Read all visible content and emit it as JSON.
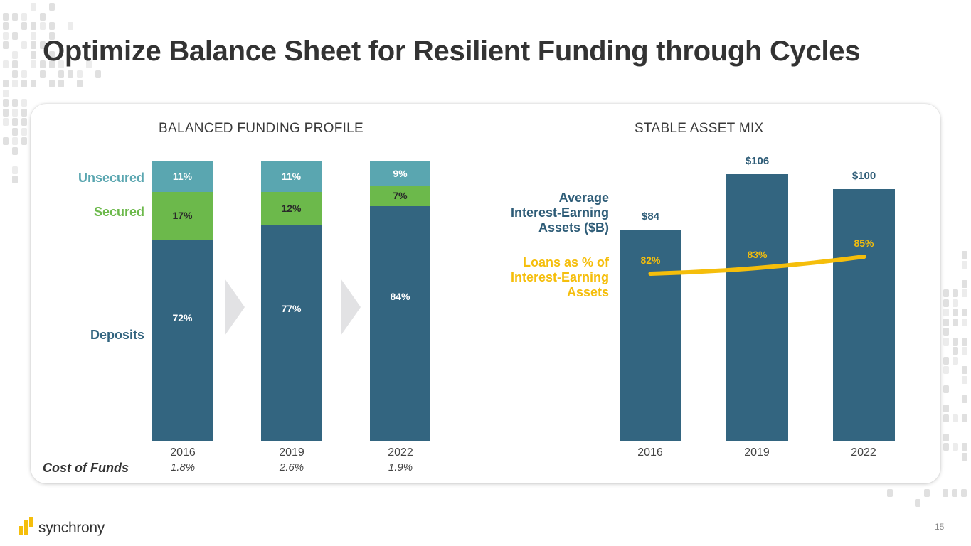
{
  "slide": {
    "title": "Optimize Balance Sheet for Resilient Funding through Cycles",
    "page_number": "15",
    "brand": "synchrony"
  },
  "colors": {
    "unsecured": "#5aa6b0",
    "secured": "#6cb94b",
    "deposits": "#336580",
    "loans_line": "#f5be0b",
    "asset_bar": "#336580"
  },
  "chart_data": [
    {
      "type": "bar",
      "stacked": true,
      "title": "BALANCED FUNDING PROFILE",
      "categories": [
        "2016",
        "2019",
        "2022"
      ],
      "series": [
        {
          "name": "Deposits",
          "values": [
            72,
            77,
            84
          ],
          "labels": [
            "72%",
            "77%",
            "84%"
          ]
        },
        {
          "name": "Secured",
          "values": [
            17,
            12,
            7
          ],
          "labels": [
            "17%",
            "12%",
            "7%"
          ]
        },
        {
          "name": "Unsecured",
          "values": [
            11,
            11,
            9
          ],
          "labels": [
            "11%",
            "11%",
            "9%"
          ]
        }
      ],
      "ylim": [
        0,
        100
      ],
      "unit": "%",
      "legend_placement": "left",
      "footer": {
        "label": "Cost of Funds",
        "values": [
          "1.8%",
          "2.6%",
          "1.9%"
        ]
      }
    },
    {
      "type": "bar",
      "title": "STABLE ASSET MIX",
      "categories": [
        "2016",
        "2019",
        "2022"
      ],
      "series": [
        {
          "name": "Average Interest-Earning Assets ($B)",
          "type": "bar",
          "values": [
            84,
            106,
            100
          ],
          "labels": [
            "$84",
            "$106",
            "$100"
          ]
        },
        {
          "name": "Loans as % of Interest-Earning Assets",
          "type": "line",
          "values": [
            82,
            83,
            85
          ],
          "labels": [
            "82%",
            "83%",
            "85%"
          ]
        }
      ],
      "ylim": [
        0,
        106
      ],
      "legend_placement": "left",
      "legend": {
        "bar_label_lines": [
          "Average",
          "Interest-Earning",
          "Assets ($B)"
        ],
        "line_label_lines": [
          "Loans as % of",
          "Interest-Earning",
          "Assets"
        ]
      }
    }
  ]
}
